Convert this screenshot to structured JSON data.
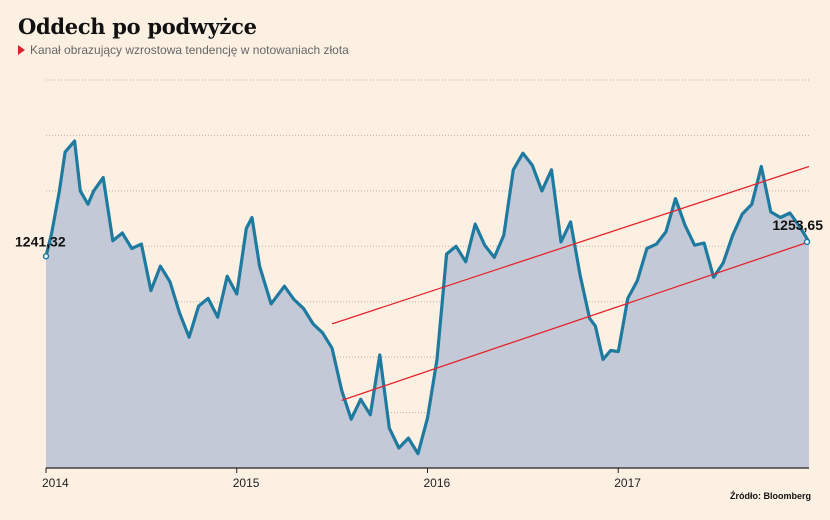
{
  "title": "Oddech po podwyżce",
  "subtitle": "Kanał obrazujący wzrostowa tendencję w notowaniach złota",
  "source": "Źródło: Bloomberg",
  "colors": {
    "background": "#fcf0e3",
    "line": "#1f7aa0",
    "area": "#c3c9d6",
    "channel": "#e3252b",
    "grid": "#b9b0a6"
  },
  "chart_data": {
    "type": "area",
    "xlabel": "",
    "ylabel": "",
    "x_ticks": [
      "2014",
      "2015",
      "2016",
      "2017"
    ],
    "x_tick_values": [
      2014.0,
      2015.0,
      2016.0,
      2017.0
    ],
    "xlim": [
      2014.0,
      2018.0
    ],
    "ylim": [
      1050,
      1400
    ],
    "grid": "horizontal-dotted",
    "start_label": "1241,32",
    "end_label": "1253,65",
    "series": [
      {
        "x": [
          2014.0,
          2014.03,
          2014.07,
          2014.1,
          2014.15,
          2014.18,
          2014.22,
          2014.25,
          2014.3,
          2014.35,
          2014.4,
          2014.45,
          2014.5,
          2014.55,
          2014.6,
          2014.65,
          2014.7,
          2014.75,
          2014.8,
          2014.85,
          2014.9,
          2014.95,
          2015.0,
          2015.05,
          2015.08,
          2015.12,
          2015.18,
          2015.25,
          2015.3,
          2015.35,
          2015.4,
          2015.45,
          2015.5,
          2015.55,
          2015.6,
          2015.65,
          2015.7,
          2015.75,
          2015.8,
          2015.85,
          2015.9,
          2015.95,
          2016.0,
          2016.05,
          2016.1,
          2016.15,
          2016.2,
          2016.25,
          2016.3,
          2016.35,
          2016.4,
          2016.45,
          2016.5,
          2016.55,
          2016.6,
          2016.65,
          2016.7,
          2016.75,
          2016.8,
          2016.85,
          2016.88,
          2016.92,
          2016.96,
          2017.0,
          2017.05,
          2017.1,
          2017.15,
          2017.2,
          2017.25,
          2017.3,
          2017.35,
          2017.4,
          2017.45,
          2017.5,
          2017.55,
          2017.6,
          2017.65,
          2017.7,
          2017.75,
          2017.8,
          2017.85,
          2017.9,
          2017.95,
          2018.0
        ],
        "y": [
          1241,
          1262,
          1300,
          1335,
          1345,
          1300,
          1288,
          1300,
          1312,
          1255,
          1262,
          1248,
          1252,
          1210,
          1232,
          1218,
          1190,
          1168,
          1196,
          1203,
          1186,
          1223,
          1207,
          1266,
          1276,
          1232,
          1198,
          1214,
          1202,
          1194,
          1180,
          1172,
          1158,
          1120,
          1094,
          1112,
          1098,
          1152,
          1086,
          1068,
          1077,
          1063,
          1095,
          1148,
          1243,
          1250,
          1236,
          1270,
          1251,
          1240,
          1260,
          1319,
          1334,
          1323,
          1300,
          1319,
          1254,
          1272,
          1224,
          1185,
          1178,
          1148,
          1156,
          1155,
          1203,
          1219,
          1248,
          1252,
          1263,
          1293,
          1269,
          1251,
          1253,
          1222,
          1235,
          1260,
          1279,
          1288,
          1322,
          1281,
          1276,
          1280,
          1268,
          1254
        ]
      }
    ],
    "channel": {
      "upper": {
        "x": [
          2015.5,
          2018.0
        ],
        "y": [
          1180,
          1322
        ]
      },
      "lower": {
        "x": [
          2015.55,
          2018.0
        ],
        "y": [
          1111,
          1254
        ]
      }
    }
  }
}
